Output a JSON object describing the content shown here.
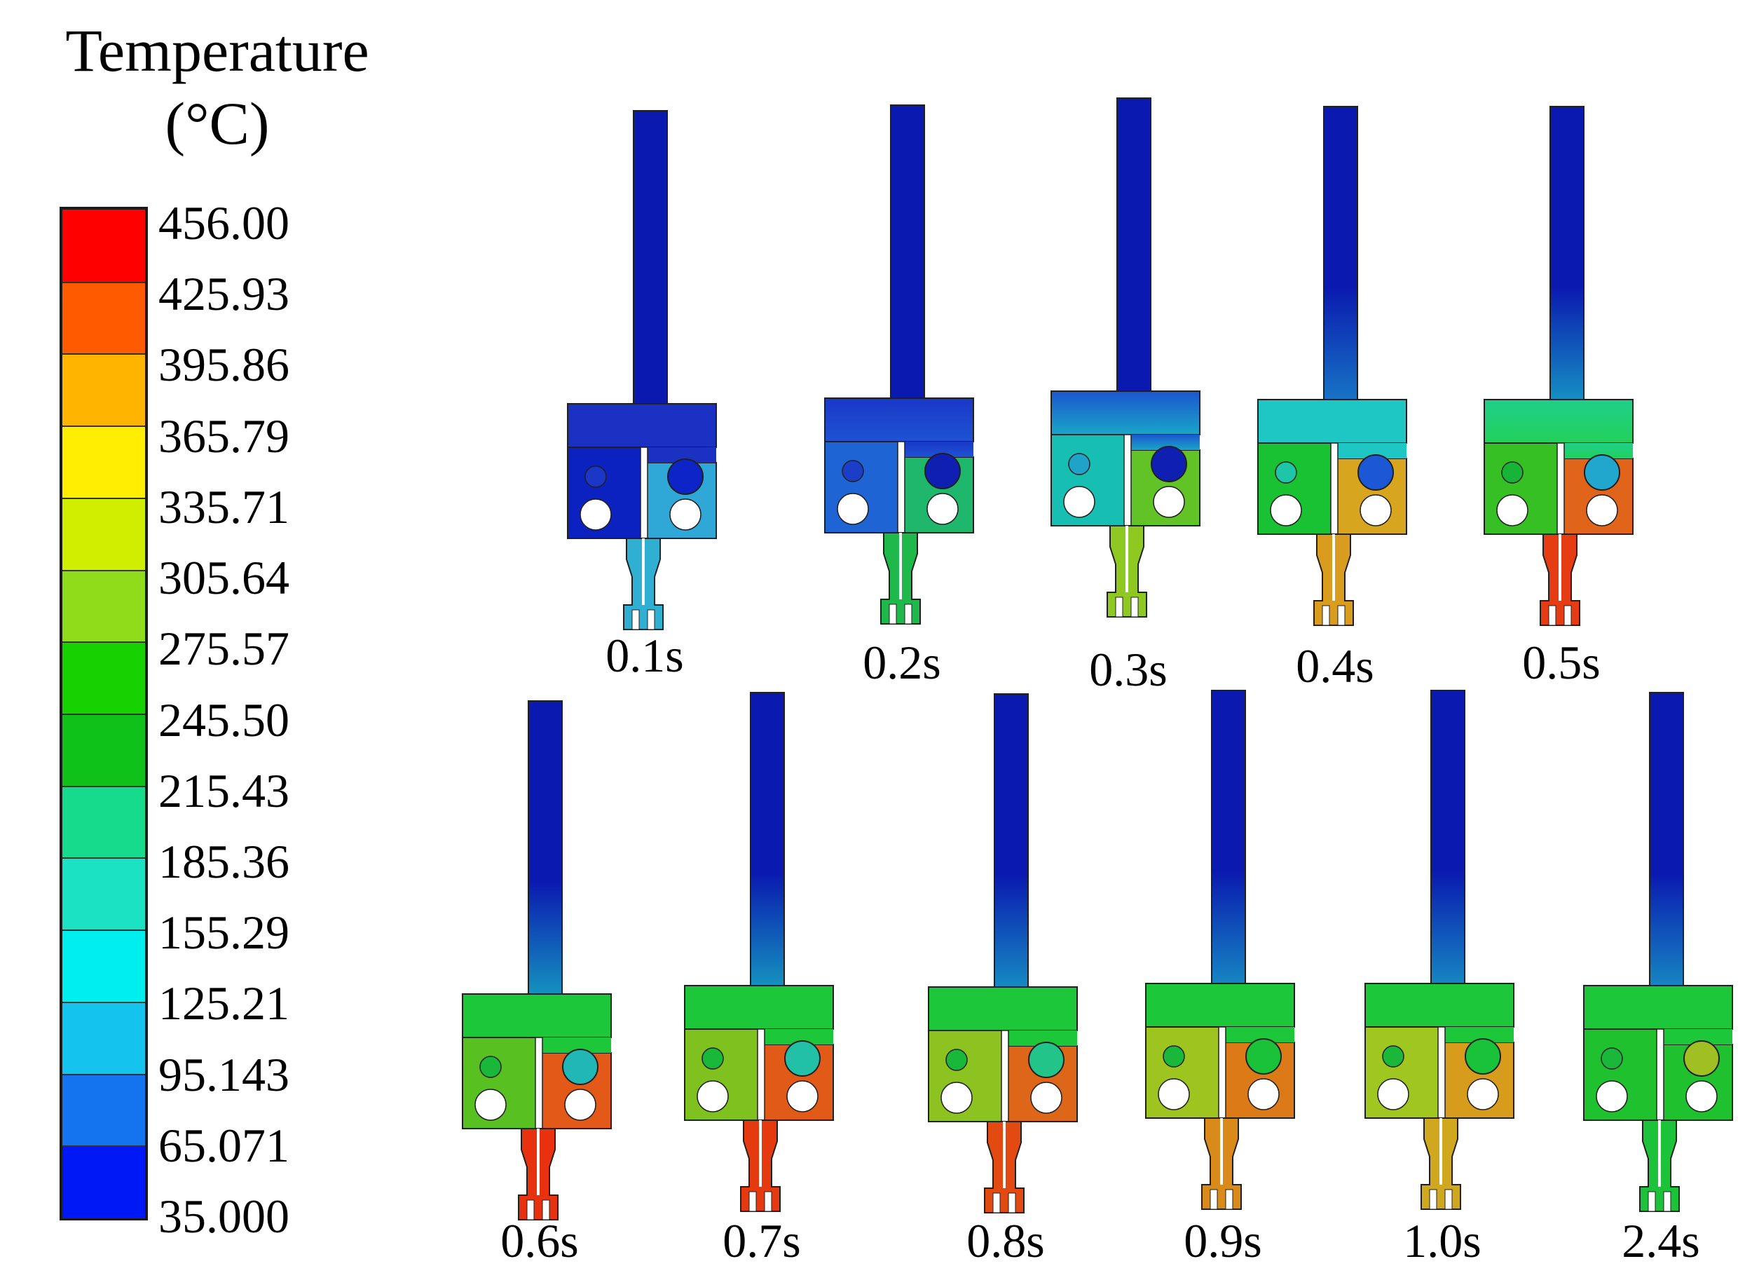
{
  "legend": {
    "title_line1": "Temperature",
    "title_line2": "(°C)",
    "unit": "°C",
    "min": 35.0,
    "max": 456.0,
    "ticks": [
      "456.00",
      "425.93",
      "395.86",
      "365.79",
      "335.71",
      "305.64",
      "275.57",
      "245.50",
      "215.43",
      "185.36",
      "155.29",
      "125.21",
      "95.143",
      "65.071",
      "35.000"
    ],
    "bin_colors": [
      "#ff0000",
      "#ff5a00",
      "#ffb400",
      "#ffee00",
      "#cfee00",
      "#8fdd1a",
      "#16d300",
      "#0ec21a",
      "#16db8c",
      "#1ae2c2",
      "#00eeee",
      "#14c4ee",
      "#1474f0",
      "#0018f5"
    ]
  },
  "snapshots": [
    {
      "time": "0.1s",
      "tip": "#2fb0d3",
      "stem_top": "#0a1ab0",
      "stem_bottom": "#0a1ab0",
      "upper_top": "#1a31c2",
      "upper_bottom": "#1a31c2",
      "left_block": "#0c22c0",
      "right_block": "#2fa8d8",
      "circle": "#0d24c6",
      "small_circle": "#1a37c8"
    },
    {
      "time": "0.2s",
      "tip": "#1fb84a",
      "stem_top": "#0a1ab0",
      "stem_bottom": "#0a1ab0",
      "upper_top": "#1a38c8",
      "upper_bottom": "#1e52d2",
      "left_block": "#1e64d4",
      "right_block": "#1eb76c",
      "circle": "#0e1fb2",
      "small_circle": "#1b3dc8"
    },
    {
      "time": "0.3s",
      "tip": "#8ec820",
      "stem_top": "#0a1ab0",
      "stem_bottom": "#0a1ab0",
      "upper_top": "#1a56d0",
      "upper_bottom": "#19a6c6",
      "left_block": "#17bfb3",
      "right_block": "#62c326",
      "circle": "#0e1fb2",
      "small_circle": "#1fa3c8"
    },
    {
      "time": "0.4s",
      "tip": "#d99c1f",
      "stem_top": "#0a1ab0",
      "stem_bottom": "#1c91cc",
      "upper_top": "#1ec7c4",
      "upper_bottom": "#1ec7c4",
      "left_block": "#18c232",
      "right_block": "#d8a51e",
      "circle": "#1c57d6",
      "small_circle": "#1ec6a8"
    },
    {
      "time": "0.5s",
      "tip": "#e63c14",
      "stem_top": "#0a1ab0",
      "stem_bottom": "#19b5c8",
      "upper_top": "#1fcf8a",
      "upper_bottom": "#22d05a",
      "left_block": "#36c023",
      "right_block": "#e0641a",
      "circle": "#21a6cd",
      "small_circle": "#17b438"
    },
    {
      "time": "0.6s",
      "tip": "#e8320f",
      "stem_top": "#0a1ab0",
      "stem_bottom": "#19b8c4",
      "upper_top": "#1cc83a",
      "upper_bottom": "#1cc83a",
      "left_block": "#58c020",
      "right_block": "#e25918",
      "circle": "#21b7b7",
      "small_circle": "#19b83a"
    },
    {
      "time": "0.7s",
      "tip": "#e53a10",
      "stem_top": "#0a1ab0",
      "stem_bottom": "#19b8c4",
      "upper_top": "#1cc83a",
      "upper_bottom": "#1cc83a",
      "left_block": "#7fc21f",
      "right_block": "#e25a18",
      "circle": "#22c0a6",
      "small_circle": "#19b83a"
    },
    {
      "time": "0.8s",
      "tip": "#e24a12",
      "stem_top": "#0a1ab0",
      "stem_bottom": "#1aaec8",
      "upper_top": "#1cc83a",
      "upper_bottom": "#1cc83a",
      "left_block": "#8cc320",
      "right_block": "#de6618",
      "circle": "#22c48a",
      "small_circle": "#19b83a"
    },
    {
      "time": "0.9s",
      "tip": "#d98a1a",
      "stem_top": "#0a1ab0",
      "stem_bottom": "#1aa8c8",
      "upper_top": "#1cc83a",
      "upper_bottom": "#1cc83a",
      "left_block": "#9ec420",
      "right_block": "#dc7a18",
      "circle": "#19c238",
      "small_circle": "#19b83a"
    },
    {
      "time": "1.0s",
      "tip": "#d0a820",
      "stem_top": "#0a1ab0",
      "stem_bottom": "#1aa8c8",
      "upper_top": "#1cc83a",
      "upper_bottom": "#1cc83a",
      "left_block": "#a0c620",
      "right_block": "#d79c1c",
      "circle": "#19c238",
      "small_circle": "#19b83a"
    },
    {
      "time": "2.4s",
      "tip": "#1cc23a",
      "stem_top": "#0a1ab0",
      "stem_bottom": "#1aa8c8",
      "upper_top": "#1cc83a",
      "upper_bottom": "#1cc83a",
      "left_block": "#1fc22e",
      "right_block": "#1fc22e",
      "circle": "#9fbf22",
      "small_circle": "#19b83a"
    }
  ]
}
